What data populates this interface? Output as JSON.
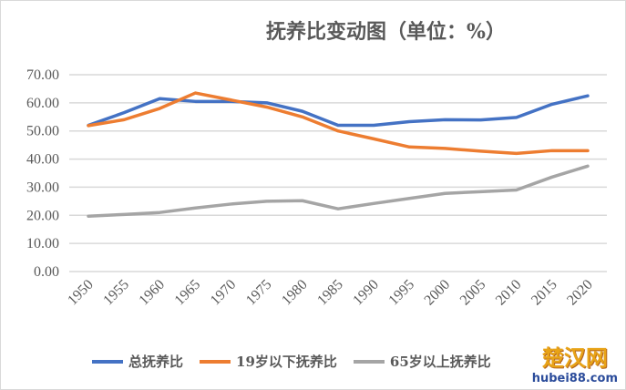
{
  "chart_data": {
    "type": "line",
    "title": "抚养比变动图（单位：%）",
    "xlabel": "",
    "ylabel": "",
    "x": [
      1950,
      1955,
      1960,
      1965,
      1970,
      1975,
      1980,
      1985,
      1990,
      1995,
      2000,
      2005,
      2010,
      2015,
      2020
    ],
    "x_tick_labels": [
      "1950",
      "1955",
      "1960",
      "1965",
      "1970",
      "1975",
      "1980",
      "1985",
      "1990",
      "1995",
      "2000",
      "2005",
      "2010",
      "2015",
      "2020"
    ],
    "y_tick_labels": [
      "0.00",
      "10.00",
      "20.00",
      "30.00",
      "40.00",
      "50.00",
      "60.00",
      "70.00"
    ],
    "ylim": [
      0,
      70
    ],
    "grid": true,
    "legend_position": "bottom",
    "series": [
      {
        "name": "总抚养比",
        "color": "#4472c4",
        "values": [
          52.0,
          56.5,
          61.5,
          60.5,
          60.5,
          60.0,
          57.0,
          52.0,
          52.0,
          53.3,
          54.0,
          53.9,
          54.8,
          59.5,
          62.5
        ]
      },
      {
        "name": "19岁以下抚养比",
        "color": "#ed7d31",
        "values": [
          51.9,
          54.0,
          58.0,
          63.5,
          61.0,
          58.5,
          55.0,
          50.0,
          47.2,
          44.3,
          43.8,
          42.8,
          42.0,
          43.0,
          43.0
        ]
      },
      {
        "name": "65岁以上抚养比",
        "color": "#a5a5a5",
        "values": [
          19.7,
          20.3,
          21.0,
          22.6,
          24.0,
          25.0,
          25.2,
          22.3,
          24.2,
          26.0,
          27.8,
          28.4,
          29.0,
          33.6,
          37.5
        ]
      }
    ]
  },
  "watermark": {
    "name": "楚汉网",
    "url": "hubei88.com"
  }
}
